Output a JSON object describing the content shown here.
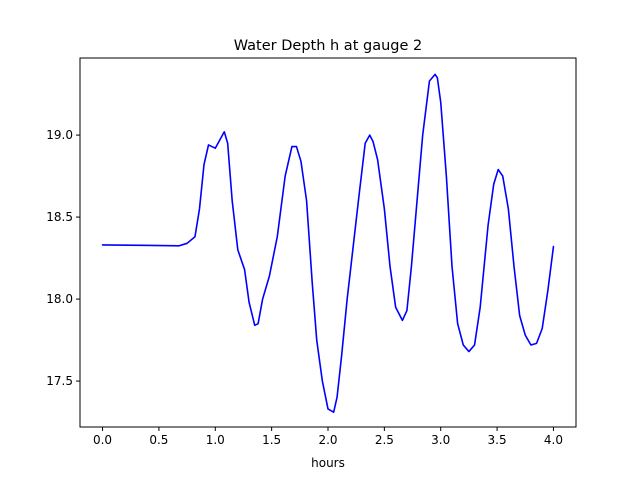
{
  "chart_data": {
    "type": "line",
    "title": "Water Depth h at gauge 2",
    "xlabel": "hours",
    "ylabel": "",
    "xlim": [
      -0.2,
      4.2
    ],
    "ylim": [
      17.22,
      19.47
    ],
    "xticks": [
      0.0,
      0.5,
      1.0,
      1.5,
      2.0,
      2.5,
      3.0,
      3.5,
      4.0
    ],
    "xtick_labels": [
      "0.0",
      "0.5",
      "1.0",
      "1.5",
      "2.0",
      "2.5",
      "3.0",
      "3.5",
      "4.0"
    ],
    "yticks": [
      17.5,
      18.0,
      18.5,
      19.0
    ],
    "ytick_labels": [
      "17.5",
      "18.0",
      "18.5",
      "19.0"
    ],
    "grid": false,
    "series": [
      {
        "color": "#0000ff",
        "x": [
          0.0,
          0.35,
          0.68,
          0.75,
          0.82,
          0.86,
          0.9,
          0.94,
          0.97,
          1.0,
          1.04,
          1.08,
          1.11,
          1.15,
          1.2,
          1.26,
          1.3,
          1.35,
          1.38,
          1.42,
          1.48,
          1.55,
          1.62,
          1.68,
          1.72,
          1.76,
          1.81,
          1.86,
          1.9,
          1.95,
          2.0,
          2.05,
          2.08,
          2.12,
          2.17,
          2.22,
          2.28,
          2.33,
          2.37,
          2.4,
          2.44,
          2.5,
          2.55,
          2.6,
          2.66,
          2.7,
          2.74,
          2.79,
          2.84,
          2.9,
          2.95,
          2.97,
          3.0,
          3.05,
          3.1,
          3.15,
          3.2,
          3.25,
          3.3,
          3.35,
          3.42,
          3.47,
          3.51,
          3.55,
          3.6,
          3.65,
          3.7,
          3.75,
          3.8,
          3.85,
          3.9,
          3.95,
          4.0
        ],
        "y": [
          18.33,
          18.328,
          18.325,
          18.34,
          18.38,
          18.55,
          18.82,
          18.94,
          18.93,
          18.92,
          18.97,
          19.02,
          18.95,
          18.6,
          18.3,
          18.18,
          17.98,
          17.84,
          17.85,
          18.0,
          18.14,
          18.38,
          18.75,
          18.93,
          18.93,
          18.84,
          18.6,
          18.1,
          17.75,
          17.5,
          17.33,
          17.31,
          17.4,
          17.65,
          18.0,
          18.3,
          18.66,
          18.95,
          19.0,
          18.96,
          18.85,
          18.55,
          18.2,
          17.95,
          17.87,
          17.93,
          18.2,
          18.6,
          19.0,
          19.33,
          19.37,
          19.35,
          19.2,
          18.75,
          18.2,
          17.85,
          17.72,
          17.68,
          17.72,
          17.95,
          18.45,
          18.7,
          18.79,
          18.75,
          18.55,
          18.2,
          17.9,
          17.78,
          17.72,
          17.73,
          17.82,
          18.05,
          18.32
        ]
      }
    ]
  }
}
